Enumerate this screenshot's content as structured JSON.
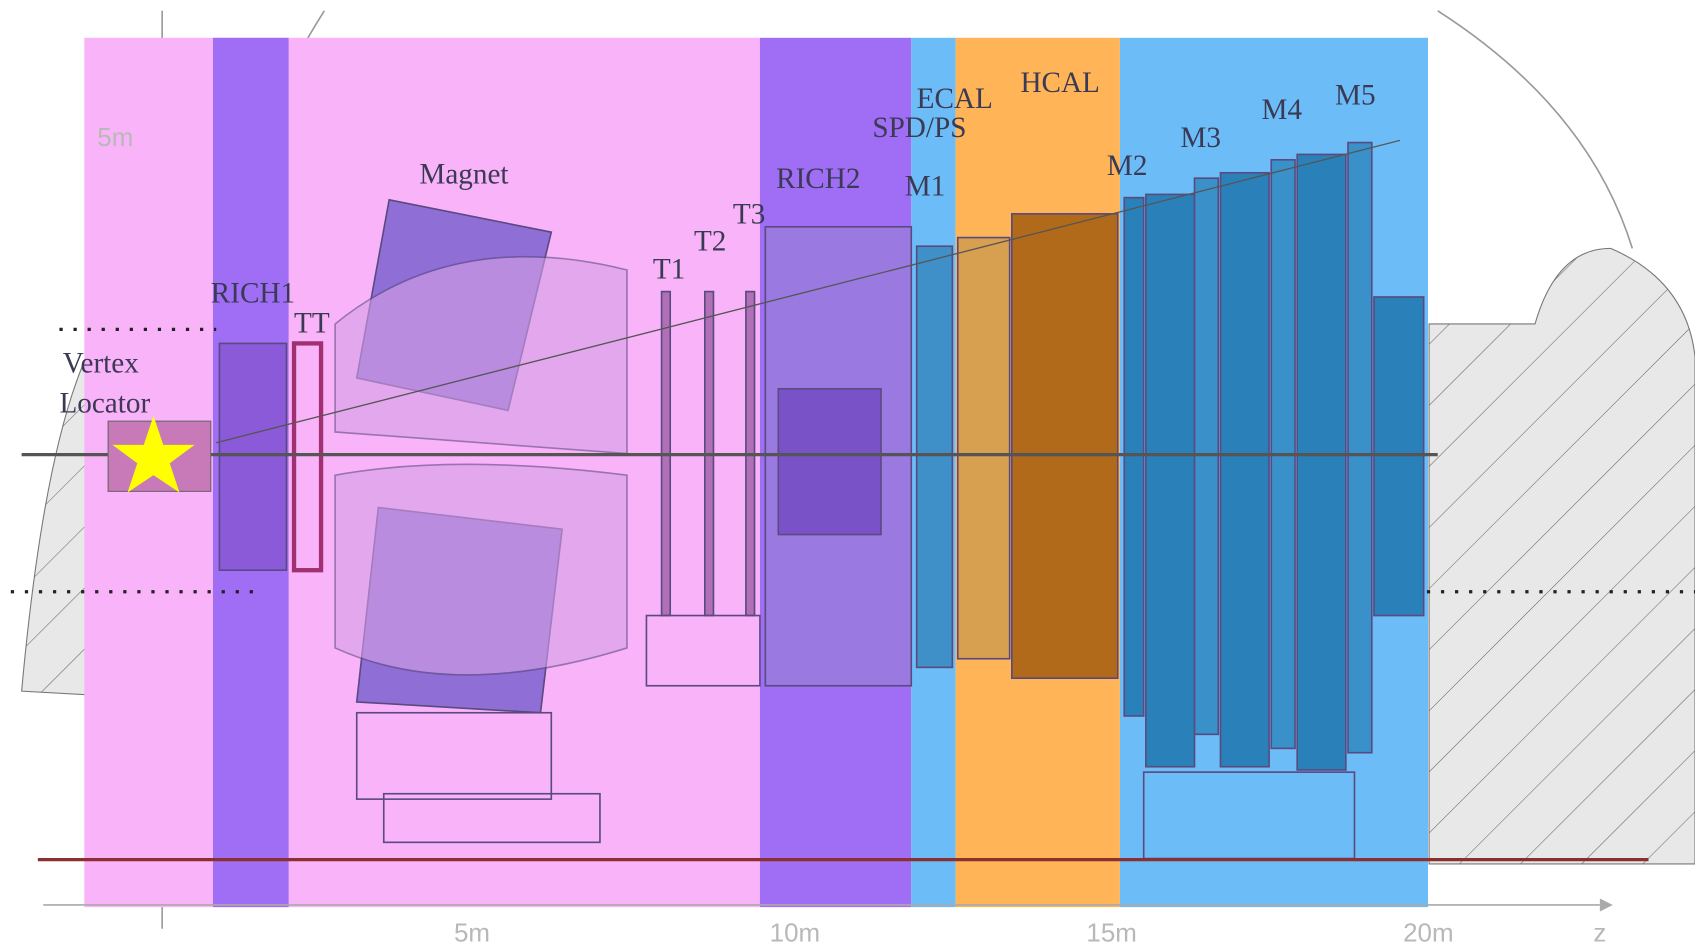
{
  "labels": {
    "vertex": "Vertex",
    "locator": "Locator",
    "rich1": "RICH1",
    "tt": "TT",
    "magnet": "Magnet",
    "t1": "T1",
    "t2": "T2",
    "t3": "T3",
    "rich2": "RICH2",
    "m1": "M1",
    "spd": "SPD/PS",
    "ecal": "ECAL",
    "hcal": "HCAL",
    "m2": "M2",
    "m3": "M3",
    "m4": "M4",
    "m5": "M5"
  },
  "axis": {
    "y_tick": "5m",
    "x_ticks": [
      "5m",
      "10m",
      "15m",
      "20m"
    ],
    "z": "z"
  }
}
